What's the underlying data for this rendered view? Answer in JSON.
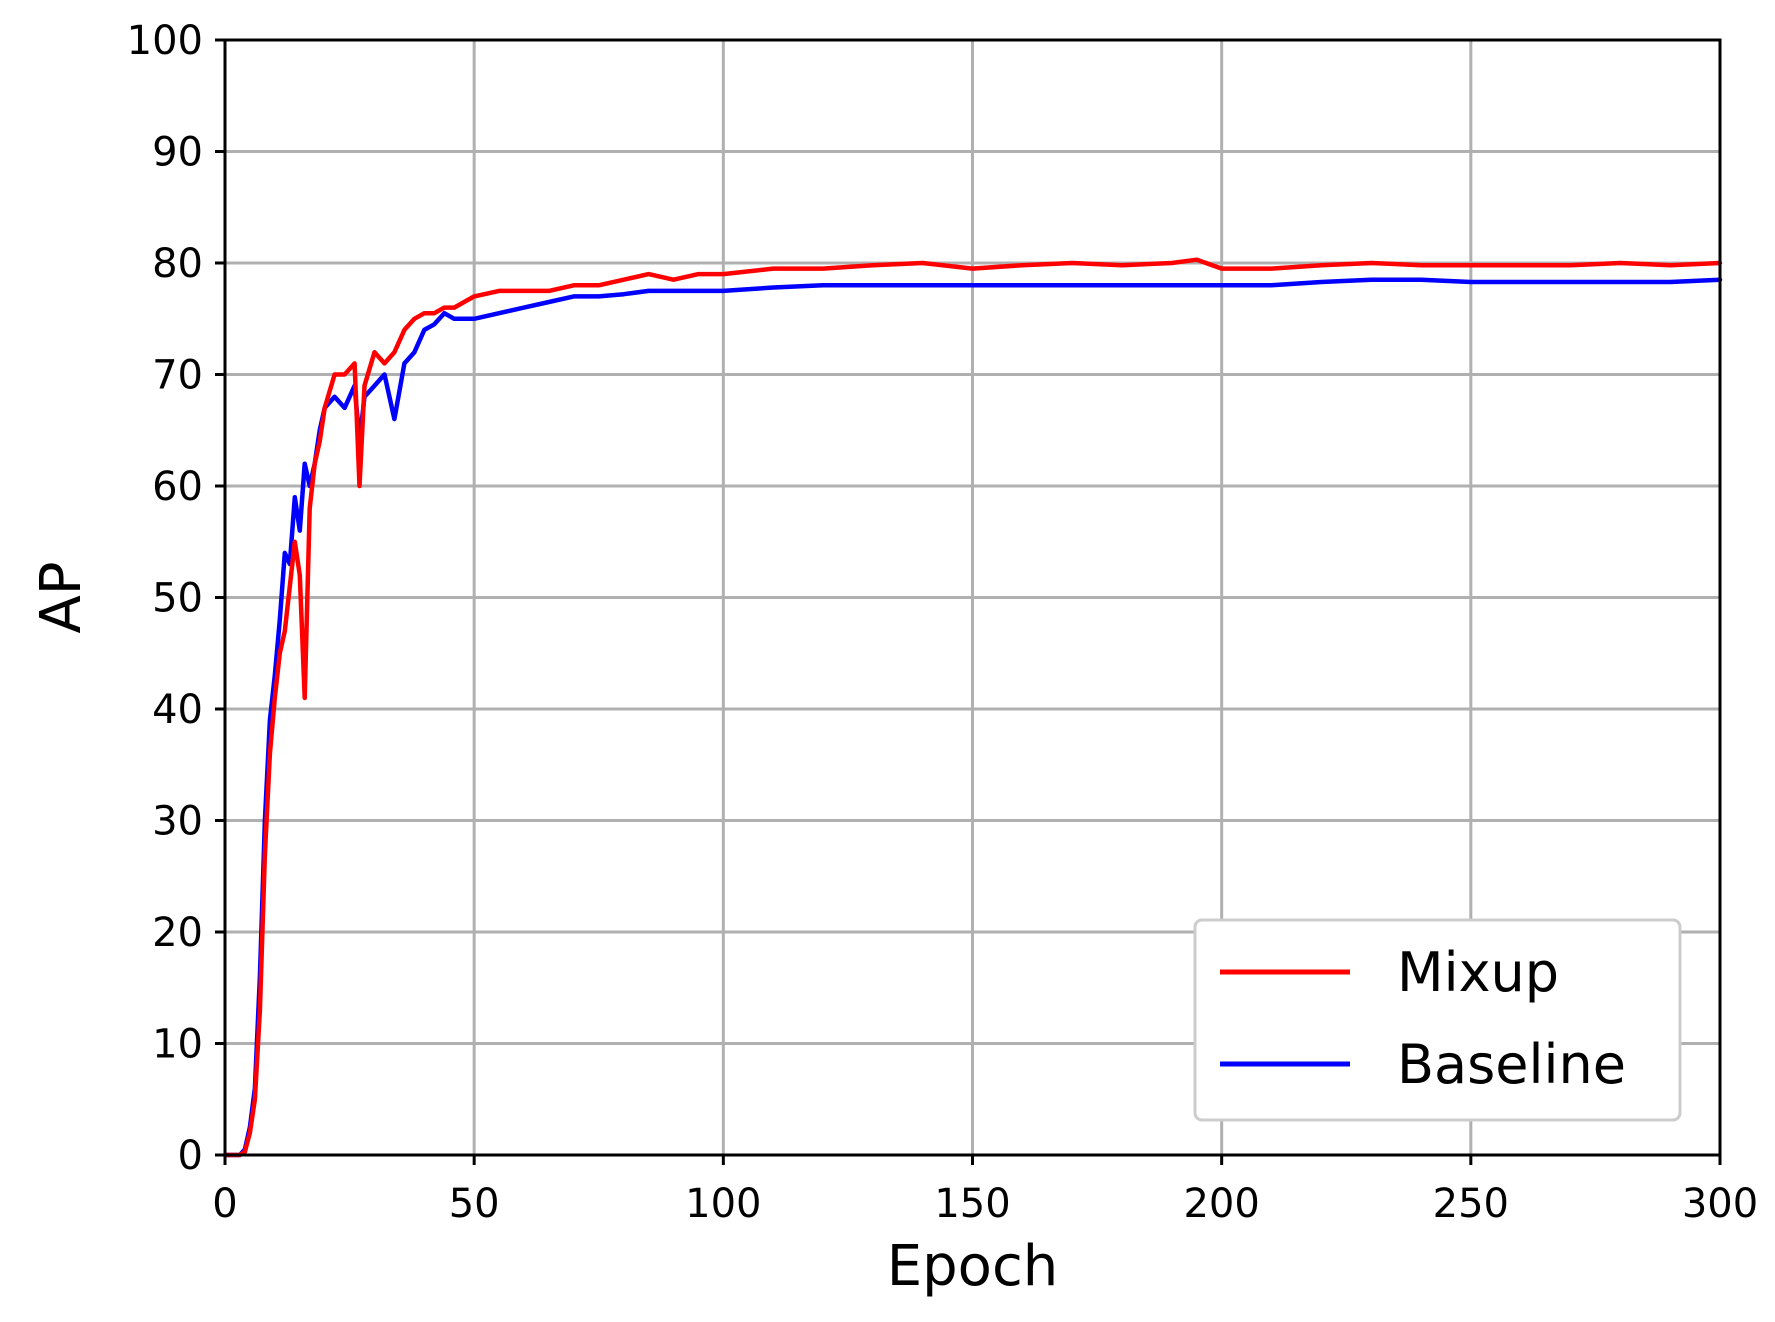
{
  "chart_data": {
    "type": "line",
    "title": "",
    "xlabel": "Epoch",
    "ylabel": "AP",
    "xlim": [
      0,
      300
    ],
    "ylim": [
      0,
      100
    ],
    "xticks": [
      0,
      50,
      100,
      150,
      200,
      250,
      300
    ],
    "yticks": [
      0,
      10,
      20,
      30,
      40,
      50,
      60,
      70,
      80,
      90,
      100
    ],
    "grid": true,
    "legend_position": "bottom-right",
    "series": [
      {
        "name": "Mixup",
        "color": "#ff0000",
        "x": [
          0,
          3,
          4,
          5,
          6,
          7,
          8,
          9,
          10,
          11,
          12,
          13,
          14,
          15,
          16,
          17,
          18,
          19,
          20,
          22,
          24,
          26,
          27,
          28,
          30,
          32,
          34,
          36,
          38,
          40,
          42,
          44,
          46,
          48,
          50,
          55,
          60,
          65,
          70,
          75,
          80,
          85,
          90,
          95,
          100,
          110,
          120,
          130,
          140,
          150,
          160,
          170,
          180,
          190,
          195,
          200,
          210,
          220,
          230,
          240,
          250,
          260,
          270,
          280,
          290,
          300
        ],
        "y": [
          0,
          0,
          0.3,
          2,
          5,
          13,
          27,
          36,
          41,
          45,
          47,
          51,
          55,
          52,
          41,
          58,
          62,
          64,
          67,
          70,
          70,
          71,
          60,
          69,
          72,
          71,
          72,
          74,
          75,
          75.5,
          75.5,
          76,
          76,
          76.5,
          77,
          77.5,
          77.5,
          77.5,
          78,
          78,
          78.5,
          79,
          78.5,
          79,
          79,
          79.5,
          79.5,
          79.8,
          80,
          79.5,
          79.8,
          80,
          79.8,
          80,
          80.3,
          79.5,
          79.5,
          79.8,
          80,
          79.8,
          79.8,
          79.8,
          79.8,
          80,
          79.8,
          80
        ]
      },
      {
        "name": "Baseline",
        "color": "#0000ff",
        "x": [
          0,
          3,
          4,
          5,
          6,
          7,
          8,
          9,
          10,
          11,
          12,
          13,
          14,
          15,
          16,
          17,
          18,
          19,
          20,
          22,
          24,
          26,
          27,
          28,
          30,
          32,
          34,
          36,
          38,
          40,
          42,
          44,
          46,
          48,
          50,
          55,
          60,
          65,
          70,
          75,
          80,
          85,
          90,
          95,
          100,
          110,
          120,
          130,
          140,
          150,
          160,
          170,
          180,
          190,
          195,
          200,
          210,
          220,
          230,
          240,
          250,
          260,
          270,
          280,
          290,
          300
        ],
        "y": [
          0,
          0,
          0.5,
          2.5,
          6,
          16,
          30,
          39,
          43,
          48,
          54,
          53,
          59,
          56,
          62,
          60,
          62,
          65,
          67,
          68,
          67,
          69,
          64,
          68,
          69,
          70,
          66,
          71,
          72,
          74,
          74.5,
          75.5,
          75,
          75,
          75,
          75.5,
          76,
          76.5,
          77,
          77,
          77.2,
          77.5,
          77.5,
          77.5,
          77.5,
          77.8,
          78,
          78,
          78,
          78,
          78,
          78,
          78,
          78,
          78,
          78,
          78,
          78.3,
          78.5,
          78.5,
          78.3,
          78.3,
          78.3,
          78.3,
          78.3,
          78.5
        ]
      }
    ]
  }
}
